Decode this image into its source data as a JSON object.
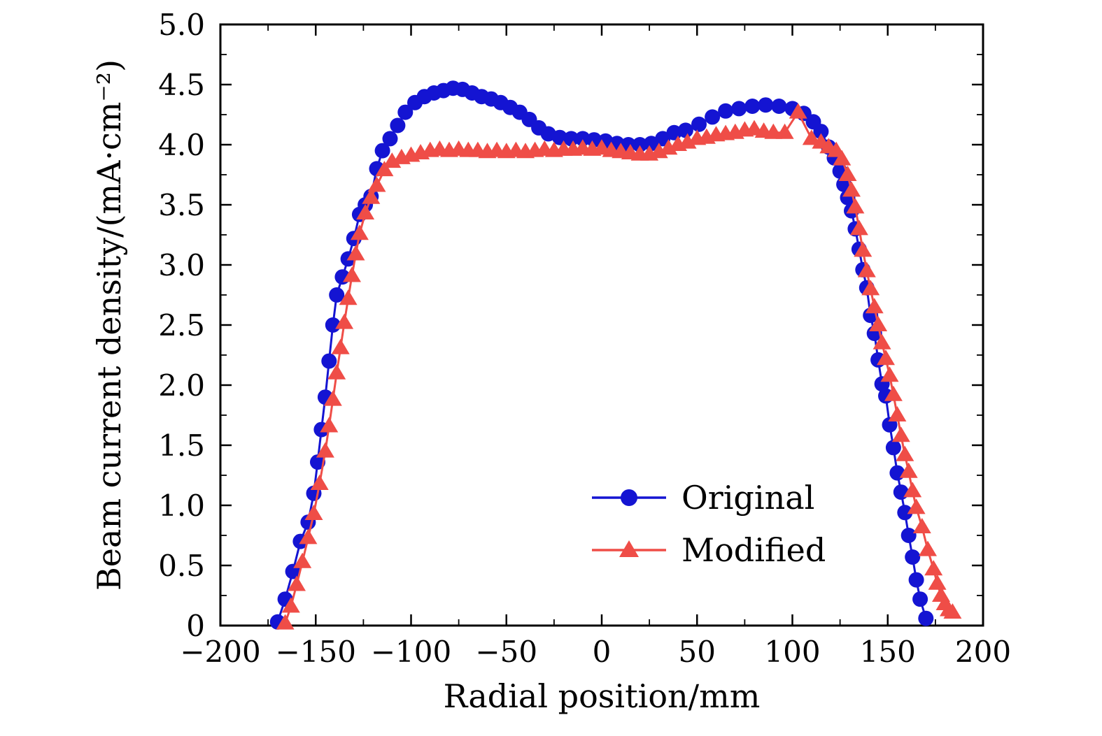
{
  "chart_data": {
    "type": "line",
    "title": "",
    "xlabel": "Radial position/mm",
    "ylabel": "Beam current density/(mA·cm⁻²)",
    "xlim": [
      -200,
      200
    ],
    "ylim": [
      0,
      5
    ],
    "grid": false,
    "legend_position": "inside-lower-right",
    "xticks": {
      "values": [
        -200,
        -150,
        -100,
        -50,
        0,
        50,
        100,
        150,
        200
      ],
      "labels": [
        "−200",
        "−150",
        "−100",
        "−50",
        "0",
        "50",
        "100",
        "150",
        "200"
      ]
    },
    "yticks": {
      "values": [
        0,
        0.5,
        1.0,
        1.5,
        2.0,
        2.5,
        3.0,
        3.5,
        4.0,
        4.5,
        5.0
      ],
      "labels": [
        "0",
        "0.5",
        "1.0",
        "1.5",
        "2.0",
        "2.5",
        "3.0",
        "3.5",
        "4.0",
        "4.5",
        "5.0"
      ]
    },
    "x_minor_step": 25,
    "y_minor_step": 0.25,
    "series": [
      {
        "name": "Original",
        "color": "#1414d2",
        "marker": "circle",
        "points": [
          [
            -170,
            0.03
          ],
          [
            -166,
            0.22
          ],
          [
            -162,
            0.45
          ],
          [
            -158,
            0.7
          ],
          [
            -154,
            0.86
          ],
          [
            -151,
            1.1
          ],
          [
            -149,
            1.36
          ],
          [
            -147,
            1.63
          ],
          [
            -145,
            1.9
          ],
          [
            -143,
            2.2
          ],
          [
            -141,
            2.5
          ],
          [
            -139,
            2.75
          ],
          [
            -136,
            2.9
          ],
          [
            -133,
            3.05
          ],
          [
            -130,
            3.22
          ],
          [
            -127,
            3.42
          ],
          [
            -124,
            3.5
          ],
          [
            -121,
            3.57
          ],
          [
            -118,
            3.8
          ],
          [
            -115,
            3.95
          ],
          [
            -111,
            4.05
          ],
          [
            -107,
            4.16
          ],
          [
            -103,
            4.27
          ],
          [
            -98,
            4.35
          ],
          [
            -93,
            4.4
          ],
          [
            -88,
            4.43
          ],
          [
            -83,
            4.45
          ],
          [
            -78,
            4.47
          ],
          [
            -73,
            4.46
          ],
          [
            -68,
            4.43
          ],
          [
            -63,
            4.4
          ],
          [
            -58,
            4.38
          ],
          [
            -53,
            4.35
          ],
          [
            -48,
            4.31
          ],
          [
            -43,
            4.27
          ],
          [
            -38,
            4.21
          ],
          [
            -33,
            4.14
          ],
          [
            -28,
            4.09
          ],
          [
            -22,
            4.06
          ],
          [
            -16,
            4.05
          ],
          [
            -10,
            4.05
          ],
          [
            -4,
            4.04
          ],
          [
            2,
            4.03
          ],
          [
            8,
            4.01
          ],
          [
            14,
            4.0
          ],
          [
            20,
            4.0
          ],
          [
            26,
            4.01
          ],
          [
            32,
            4.05
          ],
          [
            38,
            4.1
          ],
          [
            44,
            4.12
          ],
          [
            51,
            4.17
          ],
          [
            58,
            4.23
          ],
          [
            65,
            4.28
          ],
          [
            72,
            4.3
          ],
          [
            79,
            4.32
          ],
          [
            86,
            4.33
          ],
          [
            93,
            4.32
          ],
          [
            100,
            4.3
          ],
          [
            106,
            4.26
          ],
          [
            111,
            4.19
          ],
          [
            115,
            4.11
          ],
          [
            119,
            3.98
          ],
          [
            122,
            3.89
          ],
          [
            125,
            3.78
          ],
          [
            127,
            3.67
          ],
          [
            129,
            3.56
          ],
          [
            131,
            3.45
          ],
          [
            133,
            3.3
          ],
          [
            135,
            3.13
          ],
          [
            137,
            2.96
          ],
          [
            139,
            2.81
          ],
          [
            141,
            2.58
          ],
          [
            143,
            2.43
          ],
          [
            145,
            2.21
          ],
          [
            147,
            2.01
          ],
          [
            149,
            1.91
          ],
          [
            151,
            1.67
          ],
          [
            153,
            1.48
          ],
          [
            155,
            1.27
          ],
          [
            157,
            1.11
          ],
          [
            159,
            0.94
          ],
          [
            161,
            0.75
          ],
          [
            163,
            0.57
          ],
          [
            165,
            0.38
          ],
          [
            167,
            0.22
          ],
          [
            170,
            0.06
          ]
        ]
      },
      {
        "name": "Modified",
        "color": "#ef4d47",
        "marker": "triangle",
        "points": [
          [
            -166,
            0.02
          ],
          [
            -163,
            0.16
          ],
          [
            -160,
            0.34
          ],
          [
            -157,
            0.53
          ],
          [
            -154,
            0.73
          ],
          [
            -151,
            0.93
          ],
          [
            -148,
            1.18
          ],
          [
            -145,
            1.45
          ],
          [
            -143,
            1.66
          ],
          [
            -141,
            1.88
          ],
          [
            -139,
            2.1
          ],
          [
            -137,
            2.31
          ],
          [
            -135,
            2.52
          ],
          [
            -133,
            2.72
          ],
          [
            -131,
            2.91
          ],
          [
            -129,
            3.09
          ],
          [
            -127,
            3.26
          ],
          [
            -124,
            3.43
          ],
          [
            -121,
            3.56
          ],
          [
            -118,
            3.66
          ],
          [
            -114,
            3.79
          ],
          [
            -110,
            3.86
          ],
          [
            -105,
            3.89
          ],
          [
            -100,
            3.91
          ],
          [
            -95,
            3.93
          ],
          [
            -90,
            3.95
          ],
          [
            -85,
            3.96
          ],
          [
            -80,
            3.95
          ],
          [
            -75,
            3.96
          ],
          [
            -70,
            3.95
          ],
          [
            -65,
            3.95
          ],
          [
            -60,
            3.94
          ],
          [
            -55,
            3.95
          ],
          [
            -50,
            3.94
          ],
          [
            -45,
            3.95
          ],
          [
            -40,
            3.94
          ],
          [
            -35,
            3.95
          ],
          [
            -30,
            3.96
          ],
          [
            -25,
            3.95
          ],
          [
            -20,
            3.96
          ],
          [
            -15,
            3.96
          ],
          [
            -10,
            3.97
          ],
          [
            -5,
            3.96
          ],
          [
            0,
            3.97
          ],
          [
            5,
            3.95
          ],
          [
            10,
            3.94
          ],
          [
            15,
            3.93
          ],
          [
            20,
            3.92
          ],
          [
            25,
            3.92
          ],
          [
            30,
            3.94
          ],
          [
            35,
            3.97
          ],
          [
            40,
            4.0
          ],
          [
            45,
            4.02
          ],
          [
            50,
            4.05
          ],
          [
            55,
            4.06
          ],
          [
            60,
            4.08
          ],
          [
            65,
            4.09
          ],
          [
            70,
            4.1
          ],
          [
            75,
            4.12
          ],
          [
            80,
            4.13
          ],
          [
            85,
            4.11
          ],
          [
            90,
            4.1
          ],
          [
            96,
            4.1
          ],
          [
            103,
            4.27
          ],
          [
            110,
            4.05
          ],
          [
            115,
            4.02
          ],
          [
            119,
            3.98
          ],
          [
            123,
            3.95
          ],
          [
            126,
            3.88
          ],
          [
            129,
            3.75
          ],
          [
            131,
            3.62
          ],
          [
            133,
            3.48
          ],
          [
            135,
            3.3
          ],
          [
            137,
            3.12
          ],
          [
            139,
            2.95
          ],
          [
            141,
            2.8
          ],
          [
            143,
            2.65
          ],
          [
            145,
            2.5
          ],
          [
            147,
            2.35
          ],
          [
            149,
            2.22
          ],
          [
            151,
            2.08
          ],
          [
            153,
            1.92
          ],
          [
            155,
            1.75
          ],
          [
            157,
            1.58
          ],
          [
            159,
            1.42
          ],
          [
            161,
            1.28
          ],
          [
            163,
            1.12
          ],
          [
            165,
            0.98
          ],
          [
            168,
            0.82
          ],
          [
            171,
            0.63
          ],
          [
            174,
            0.47
          ],
          [
            176,
            0.35
          ],
          [
            178,
            0.25
          ],
          [
            180,
            0.18
          ],
          [
            182,
            0.13
          ],
          [
            184,
            0.11
          ]
        ]
      }
    ]
  }
}
